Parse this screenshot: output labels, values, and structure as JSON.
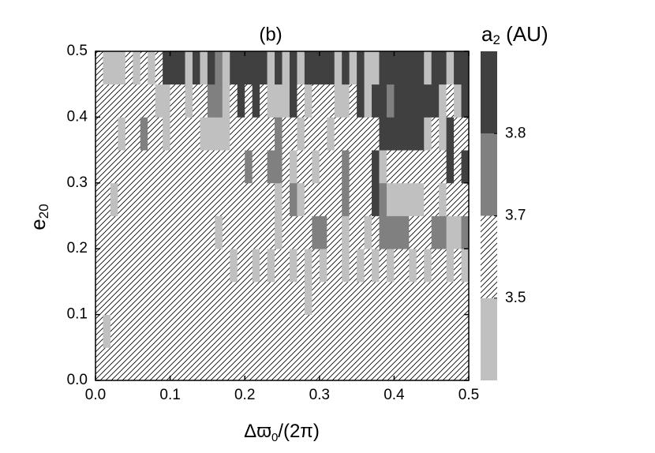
{
  "chart_data": {
    "type": "heatmap",
    "title": "(b)",
    "x_label": {
      "main": "Δϖ",
      "sub": "0",
      "post": "/(2π)"
    },
    "y_label": {
      "main": "e",
      "sub": "20"
    },
    "colorbar_label": {
      "main": "a",
      "sub": "2",
      "post": " (AU)"
    },
    "xlim": [
      0,
      0.5
    ],
    "ylim": [
      0,
      0.5
    ],
    "xticks": [
      {
        "value": 0,
        "label": "0.0"
      },
      0.1,
      0.2,
      0.3,
      0.4,
      0.5
    ],
    "yticks": [
      {
        "value": 0,
        "label": "0.0"
      },
      0.1,
      0.2,
      0.3,
      0.4,
      0.5
    ],
    "colorbar_ticks": [
      3.5,
      3.7,
      3.8
    ],
    "colors": [
      "#c0c0c0",
      "hatch",
      "#808080",
      "#404040"
    ],
    "z": [
      [
        3.6,
        3.6,
        3.6,
        3.6,
        3.6,
        3.6,
        3.6,
        3.6,
        3.6,
        3.6,
        3.6,
        3.6,
        3.6,
        3.6,
        3.6,
        3.6,
        3.6,
        3.6,
        3.6,
        3.6,
        3.6,
        3.6,
        3.6,
        3.6,
        3.6,
        3.6,
        3.6,
        3.6,
        3.6,
        3.6,
        3.6,
        3.6,
        3.6,
        3.6,
        3.6,
        3.6,
        3.6,
        3.6,
        3.6,
        3.6,
        3.6,
        3.6,
        3.6,
        3.6,
        3.6,
        3.6,
        3.6,
        3.6,
        3.6,
        3.6
      ],
      [
        3.6,
        3.4,
        3.6,
        3.6,
        3.6,
        3.6,
        3.6,
        3.6,
        3.6,
        3.6,
        3.6,
        3.6,
        3.6,
        3.6,
        3.6,
        3.6,
        3.6,
        3.6,
        3.6,
        3.6,
        3.6,
        3.6,
        3.6,
        3.6,
        3.6,
        3.6,
        3.6,
        3.6,
        3.6,
        3.6,
        3.6,
        3.6,
        3.6,
        3.6,
        3.6,
        3.6,
        3.6,
        3.6,
        3.6,
        3.6,
        3.6,
        3.6,
        3.6,
        3.6,
        3.6,
        3.6,
        3.6,
        3.6,
        3.6,
        3.6
      ],
      [
        3.6,
        3.6,
        3.6,
        3.6,
        3.6,
        3.6,
        3.6,
        3.6,
        3.6,
        3.6,
        3.6,
        3.6,
        3.6,
        3.6,
        3.6,
        3.6,
        3.6,
        3.6,
        3.6,
        3.6,
        3.6,
        3.6,
        3.6,
        3.6,
        3.6,
        3.6,
        3.6,
        3.6,
        3.4,
        3.6,
        3.6,
        3.6,
        3.6,
        3.6,
        3.6,
        3.6,
        3.6,
        3.6,
        3.6,
        3.6,
        3.6,
        3.6,
        3.6,
        3.6,
        3.6,
        3.6,
        3.6,
        3.6,
        3.6,
        3.6
      ],
      [
        3.6,
        3.6,
        3.6,
        3.6,
        3.6,
        3.6,
        3.6,
        3.6,
        3.6,
        3.6,
        3.6,
        3.6,
        3.6,
        3.6,
        3.6,
        3.6,
        3.6,
        3.6,
        3.4,
        3.6,
        3.6,
        3.4,
        3.6,
        3.4,
        3.6,
        3.6,
        3.4,
        3.6,
        3.4,
        3.6,
        3.4,
        3.6,
        3.6,
        3.4,
        3.6,
        3.4,
        3.6,
        3.4,
        3.6,
        3.4,
        3.6,
        3.6,
        3.4,
        3.6,
        3.4,
        3.6,
        3.6,
        3.4,
        3.6,
        3.4
      ],
      [
        3.6,
        3.6,
        3.6,
        3.6,
        3.6,
        3.6,
        3.6,
        3.6,
        3.6,
        3.6,
        3.6,
        3.6,
        3.6,
        3.6,
        3.6,
        3.6,
        3.4,
        3.6,
        3.6,
        3.6,
        3.6,
        3.6,
        3.6,
        3.6,
        3.4,
        3.6,
        3.6,
        3.6,
        3.6,
        3.75,
        3.75,
        3.6,
        3.6,
        3.4,
        3.6,
        3.6,
        3.4,
        3.6,
        3.75,
        3.75,
        3.75,
        3.75,
        3.6,
        3.6,
        3.6,
        3.75,
        3.75,
        3.4,
        3.4,
        3.75
      ],
      [
        3.6,
        3.6,
        3.4,
        3.6,
        3.6,
        3.6,
        3.6,
        3.6,
        3.6,
        3.6,
        3.6,
        3.6,
        3.6,
        3.6,
        3.6,
        3.6,
        3.6,
        3.6,
        3.6,
        3.6,
        3.6,
        3.6,
        3.6,
        3.6,
        3.4,
        3.6,
        3.75,
        3.4,
        3.6,
        3.6,
        3.6,
        3.6,
        3.6,
        3.75,
        3.6,
        3.6,
        3.6,
        3.9,
        3.75,
        3.4,
        3.4,
        3.4,
        3.4,
        3.4,
        3.6,
        3.6,
        3.4,
        3.6,
        3.6,
        3.6
      ],
      [
        3.6,
        3.6,
        3.6,
        3.6,
        3.6,
        3.6,
        3.6,
        3.6,
        3.6,
        3.6,
        3.6,
        3.6,
        3.6,
        3.6,
        3.6,
        3.6,
        3.6,
        3.6,
        3.6,
        3.6,
        3.75,
        3.6,
        3.6,
        3.75,
        3.75,
        3.6,
        3.4,
        3.6,
        3.6,
        3.4,
        3.6,
        3.6,
        3.6,
        3.75,
        3.6,
        3.6,
        3.6,
        3.9,
        3.4,
        3.6,
        3.6,
        3.6,
        3.6,
        3.6,
        3.6,
        3.6,
        3.6,
        3.9,
        3.6,
        3.9
      ],
      [
        3.6,
        3.6,
        3.6,
        3.4,
        3.6,
        3.6,
        3.75,
        3.6,
        3.6,
        3.4,
        3.6,
        3.6,
        3.6,
        3.6,
        3.4,
        3.4,
        3.4,
        3.4,
        3.6,
        3.6,
        3.6,
        3.6,
        3.6,
        3.6,
        3.75,
        3.6,
        3.6,
        3.4,
        3.6,
        3.6,
        3.6,
        3.4,
        3.6,
        3.6,
        3.6,
        3.6,
        3.6,
        3.6,
        3.9,
        3.9,
        3.9,
        3.9,
        3.9,
        3.9,
        3.4,
        3.6,
        3.4,
        3.9,
        3.6,
        3.6
      ],
      [
        3.6,
        3.6,
        3.6,
        3.6,
        3.6,
        3.6,
        3.6,
        3.6,
        3.4,
        3.4,
        3.6,
        3.6,
        3.4,
        3.6,
        3.6,
        3.75,
        3.75,
        3.4,
        3.6,
        3.9,
        3.6,
        3.9,
        3.6,
        3.4,
        3.4,
        3.4,
        3.9,
        3.6,
        3.4,
        3.6,
        3.6,
        3.6,
        3.4,
        3.4,
        3.6,
        3.9,
        3.4,
        3.9,
        3.9,
        3.75,
        3.9,
        3.9,
        3.9,
        3.9,
        3.9,
        3.9,
        3.4,
        3.6,
        3.4,
        3.9
      ],
      [
        3.6,
        3.4,
        3.4,
        3.4,
        3.6,
        3.4,
        3.6,
        3.4,
        3.6,
        3.9,
        3.9,
        3.9,
        3.4,
        3.9,
        3.4,
        3.9,
        3.75,
        3.4,
        3.9,
        3.9,
        3.9,
        3.9,
        3.9,
        3.4,
        3.9,
        3.4,
        3.9,
        3.4,
        3.9,
        3.9,
        3.9,
        3.9,
        3.4,
        3.9,
        3.4,
        3.9,
        3.4,
        3.4,
        3.9,
        3.9,
        3.9,
        3.9,
        3.9,
        3.9,
        3.4,
        3.9,
        3.9,
        3.4,
        3.9,
        3.9
      ]
    ]
  }
}
